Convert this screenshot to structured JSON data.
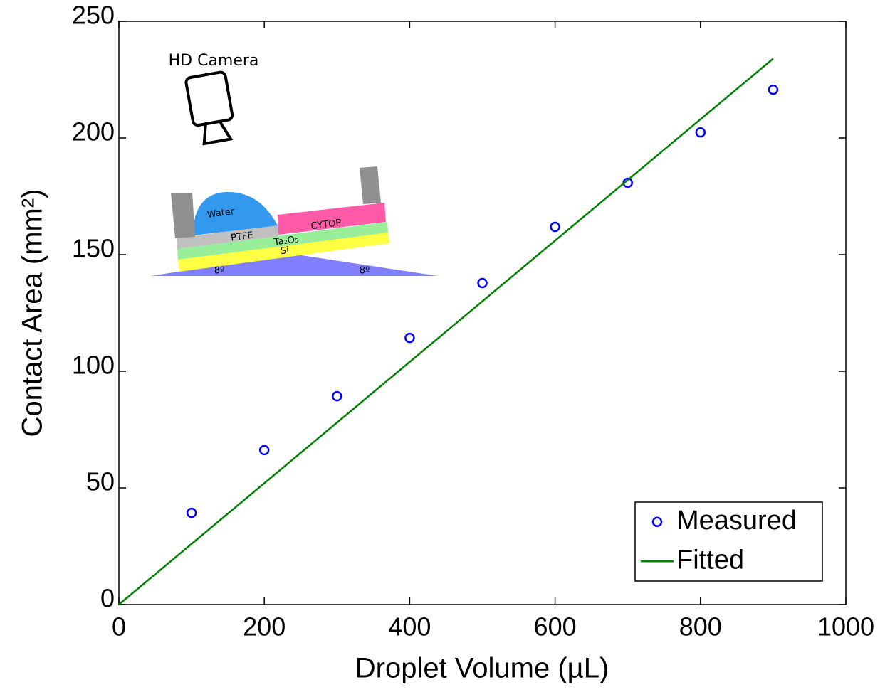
{
  "chart_data": {
    "type": "scatter",
    "xlabel": "Droplet Volume (µL)",
    "ylabel": "Contact Area (mm²)",
    "xlim": [
      0,
      1000
    ],
    "xticks": [
      0,
      200,
      400,
      600,
      800,
      1000
    ],
    "ylim": [
      0,
      250
    ],
    "yticks": [
      0,
      50,
      100,
      150,
      200,
      250
    ],
    "grid": false,
    "legend": "lower right",
    "series": [
      {
        "name": "Measured",
        "color": "#0000ff",
        "mode": "markers",
        "x": [
          100,
          200,
          300,
          400,
          500,
          600,
          700,
          800,
          900
        ],
        "values": [
          39.3,
          66.2,
          89.3,
          114.3,
          137.8,
          161.9,
          180.8,
          202.4,
          220.7
        ]
      },
      {
        "name": "Fitted",
        "color": "#008000",
        "mode": "line",
        "x": [
          0,
          900
        ],
        "values": [
          0,
          234
        ]
      }
    ],
    "inset_labels": [
      "HD Camera",
      "Water",
      "PTFE",
      "CYTOP",
      "Ta₂O₅",
      "Si",
      "8º",
      "8º"
    ]
  }
}
